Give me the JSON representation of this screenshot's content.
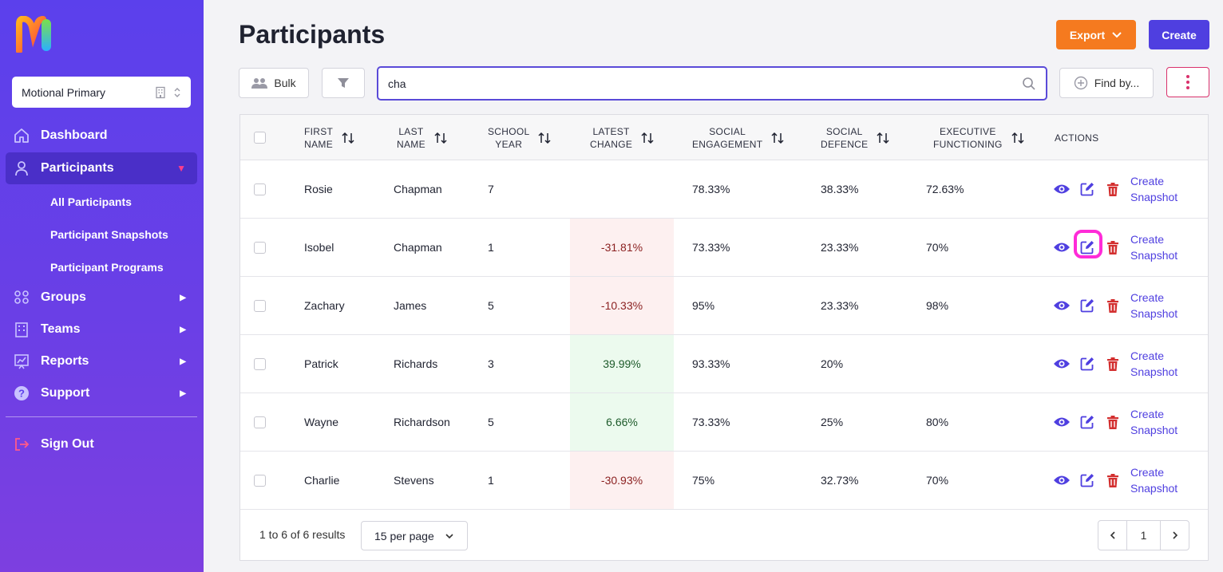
{
  "sidebar": {
    "logo_text": "Motional",
    "org_select": "Motional Primary",
    "nav": [
      {
        "label": "Dashboard",
        "icon": "home-icon"
      },
      {
        "label": "Participants",
        "icon": "user-icon"
      },
      {
        "label": "Groups",
        "icon": "users-icon"
      },
      {
        "label": "Teams",
        "icon": "building-icon"
      },
      {
        "label": "Reports",
        "icon": "chart-icon"
      },
      {
        "label": "Support",
        "icon": "help-icon"
      }
    ],
    "sub_items": [
      "All Participants",
      "Participant Snapshots",
      "Participant Programs"
    ],
    "sign_out": "Sign Out"
  },
  "header": {
    "title": "Participants",
    "export_label": "Export",
    "create_label": "Create"
  },
  "toolbar": {
    "bulk_label": "Bulk",
    "search_value": "cha",
    "find_by_label": "Find by..."
  },
  "table": {
    "headers": {
      "first_name": [
        "FIRST",
        "NAME"
      ],
      "last_name": [
        "LAST",
        "NAME"
      ],
      "school_year": [
        "SCHOOL",
        "YEAR"
      ],
      "latest_change": [
        "LATEST",
        "CHANGE"
      ],
      "social_engagement": [
        "SOCIAL",
        "ENGAGEMENT"
      ],
      "social_defence": [
        "SOCIAL",
        "DEFENCE"
      ],
      "executive_functioning": [
        "EXECUTIVE",
        "FUNCTIONING"
      ],
      "actions": "ACTIONS"
    },
    "snapshot_label": [
      "Create",
      "Snapshot"
    ],
    "rows": [
      {
        "first": "Rosie",
        "last": "Chapman",
        "year": "7",
        "change": "",
        "change_type": "none",
        "engagement": "78.33%",
        "defence": "38.33%",
        "executive": "72.63%"
      },
      {
        "first": "Isobel",
        "last": "Chapman",
        "year": "1",
        "change": "-31.81%",
        "change_type": "neg",
        "engagement": "73.33%",
        "defence": "23.33%",
        "executive": "70%"
      },
      {
        "first": "Zachary",
        "last": "James",
        "year": "5",
        "change": "-10.33%",
        "change_type": "neg",
        "engagement": "95%",
        "defence": "23.33%",
        "executive": "98%"
      },
      {
        "first": "Patrick",
        "last": "Richards",
        "year": "3",
        "change": "39.99%",
        "change_type": "pos",
        "engagement": "93.33%",
        "defence": "20%",
        "executive": ""
      },
      {
        "first": "Wayne",
        "last": "Richardson",
        "year": "5",
        "change": "6.66%",
        "change_type": "pos",
        "engagement": "73.33%",
        "defence": "25%",
        "executive": "80%"
      },
      {
        "first": "Charlie",
        "last": "Stevens",
        "year": "1",
        "change": "-30.93%",
        "change_type": "neg",
        "engagement": "75%",
        "defence": "32.73%",
        "executive": "70%"
      }
    ]
  },
  "footer": {
    "results": "1 to 6 of 6 results",
    "per_page": "15 per page",
    "page": "1"
  },
  "colors": {
    "accent": "#4f3fe0",
    "export": "#f57a1f",
    "delete": "#d32f2f",
    "highlight": "#ff2bd8"
  }
}
